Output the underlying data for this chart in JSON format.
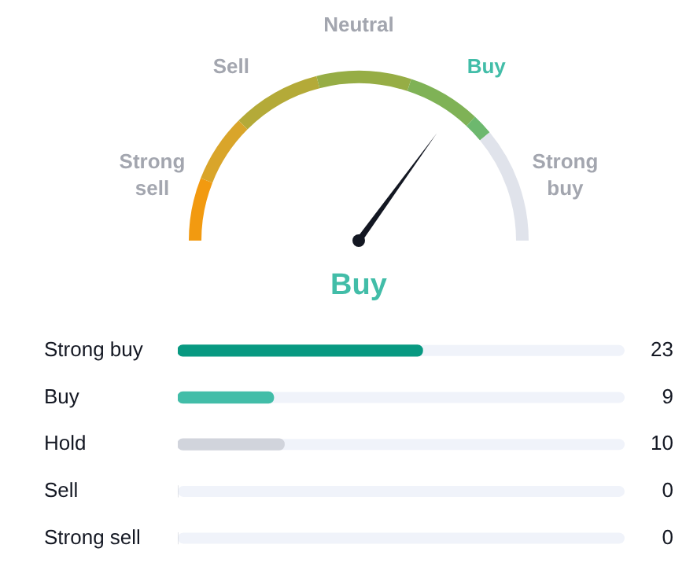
{
  "chart_data": [
    {
      "type": "other",
      "categories": [
        "Strong sell",
        "Sell",
        "Neutral",
        "Buy",
        "Strong buy"
      ],
      "colors": [
        "#a3a6af",
        "#a3a6af",
        "#a3a6af",
        "#42bda8",
        "#a3a6af"
      ],
      "annotations": [
        "Buy"
      ]
    },
    {
      "type": "bar",
      "orientation": "horizontal",
      "categories": [
        "Strong buy",
        "Buy",
        "Hold",
        "Sell",
        "Strong sell"
      ],
      "values": [
        23,
        9,
        10,
        0,
        0
      ],
      "colors": [
        "#089981",
        "#42bda8",
        "#d1d4dc",
        "#d1d4dc",
        "#d1d4dc"
      ],
      "data_labels": true
    }
  ]
}
